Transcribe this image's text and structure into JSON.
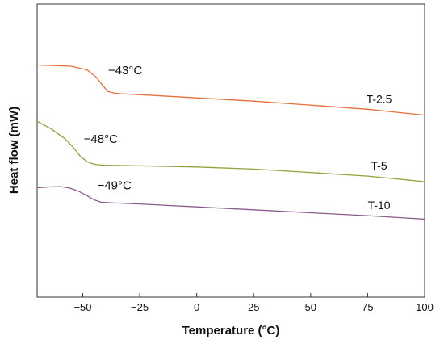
{
  "chart_data": {
    "type": "line",
    "xlabel": "Temperature (°C)",
    "ylabel": "Heat flow (mW)",
    "xlim": [
      -70,
      100
    ],
    "xticks": [
      -50,
      -25,
      0,
      25,
      50,
      75,
      100
    ],
    "yticks_shown": false,
    "grid": false,
    "series": [
      {
        "name": "T-2.5",
        "color": "#e8703a",
        "annotation": "−43°C",
        "x": [
          -70,
          -55,
          -48,
          -44,
          -41,
          -39,
          -36,
          -33,
          -25,
          0,
          25,
          50,
          75,
          100
        ],
        "y": [
          79.2,
          78.8,
          77.5,
          75.0,
          72.0,
          70.2,
          69.6,
          69.4,
          69.1,
          68.0,
          66.9,
          65.5,
          64.1,
          62.1
        ]
      },
      {
        "name": "T-5",
        "color": "#8fa43c",
        "annotation": "−48°C",
        "x": [
          -70,
          -64,
          -58,
          -54,
          -51,
          -48,
          -46,
          -44,
          -40,
          -25,
          0,
          25,
          50,
          75,
          100
        ],
        "y": [
          60.0,
          57.5,
          54.2,
          51.0,
          48.0,
          46.2,
          45.6,
          45.2,
          45.0,
          44.8,
          44.4,
          43.7,
          42.5,
          41.3,
          39.4
        ]
      },
      {
        "name": "T-10",
        "color": "#8a5a8c",
        "annotation": "−49°C",
        "x": [
          -70,
          -65,
          -60,
          -56,
          -52,
          -48,
          -45,
          -42,
          -38,
          -25,
          0,
          25,
          50,
          75,
          100
        ],
        "y": [
          37.3,
          37.6,
          37.7,
          37.3,
          36.2,
          34.6,
          33.2,
          32.4,
          32.2,
          31.8,
          30.8,
          29.8,
          28.8,
          27.8,
          26.6
        ]
      }
    ]
  }
}
